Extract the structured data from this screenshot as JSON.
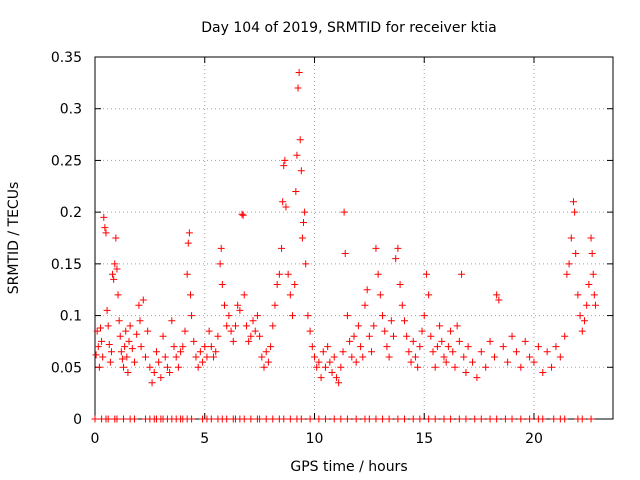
{
  "chart_data": {
    "type": "scatter",
    "title": "Day 104 of 2019, SRMTID for receiver ktia",
    "xlabel": "GPS time / hours",
    "ylabel": "SRMTID / TECUs",
    "xlim": [
      0,
      23.6
    ],
    "ylim": [
      0,
      0.35
    ],
    "xticks": [
      0,
      5,
      10,
      15,
      20
    ],
    "xtick_labels": [
      "0",
      "5",
      "10",
      "15",
      "20"
    ],
    "yticks": [
      0,
      0.05,
      0.1,
      0.15,
      0.2,
      0.25,
      0.3,
      0.35
    ],
    "ytick_labels": [
      "0",
      "0.05",
      "0.1",
      "0.15",
      "0.2",
      "0.25",
      "0.3",
      "0.35"
    ],
    "grid": true,
    "marker": "plus",
    "color": "#ff0000",
    "series": [
      {
        "name": "SRMTID",
        "points": [
          [
            0.05,
            0.062
          ],
          [
            0.1,
            0.085
          ],
          [
            0.15,
            0.07
          ],
          [
            0.2,
            0.05
          ],
          [
            0.25,
            0.088
          ],
          [
            0.3,
            0.075
          ],
          [
            0.35,
            0.06
          ],
          [
            0.4,
            0.195
          ],
          [
            0.45,
            0.185
          ],
          [
            0.5,
            0.18
          ],
          [
            0.55,
            0.105
          ],
          [
            0.6,
            0.09
          ],
          [
            0.65,
            0.072
          ],
          [
            0.7,
            0.055
          ],
          [
            0.75,
            0.065
          ],
          [
            0.8,
            0.14
          ],
          [
            0.85,
            0.135
          ],
          [
            0.9,
            0.15
          ],
          [
            0.95,
            0.175
          ],
          [
            1.0,
            0.145
          ],
          [
            1.05,
            0.12
          ],
          [
            1.1,
            0.095
          ],
          [
            1.15,
            0.08
          ],
          [
            1.2,
            0.065
          ],
          [
            1.25,
            0.058
          ],
          [
            1.3,
            0.05
          ],
          [
            1.35,
            0.07
          ],
          [
            1.4,
            0.085
          ],
          [
            1.45,
            0.06
          ],
          [
            1.5,
            0.045
          ],
          [
            1.55,
            0.075
          ],
          [
            1.6,
            0.09
          ],
          [
            1.7,
            0.068
          ],
          [
            1.8,
            0.055
          ],
          [
            1.9,
            0.082
          ],
          [
            2.0,
            0.11
          ],
          [
            2.05,
            0.095
          ],
          [
            2.1,
            0.07
          ],
          [
            2.2,
            0.115
          ],
          [
            2.3,
            0.06
          ],
          [
            2.4,
            0.085
          ],
          [
            2.5,
            0.05
          ],
          [
            2.6,
            0.035
          ],
          [
            2.7,
            0.045
          ],
          [
            2.8,
            0.065
          ],
          [
            2.9,
            0.055
          ],
          [
            3.0,
            0.04
          ],
          [
            3.1,
            0.08
          ],
          [
            3.2,
            0.06
          ],
          [
            3.3,
            0.05
          ],
          [
            3.4,
            0.045
          ],
          [
            3.5,
            0.095
          ],
          [
            3.6,
            0.07
          ],
          [
            3.7,
            0.06
          ],
          [
            3.8,
            0.05
          ],
          [
            3.9,
            0.065
          ],
          [
            4.0,
            0.07
          ],
          [
            4.1,
            0.085
          ],
          [
            4.2,
            0.14
          ],
          [
            4.25,
            0.17
          ],
          [
            4.3,
            0.18
          ],
          [
            4.35,
            0.12
          ],
          [
            4.4,
            0.1
          ],
          [
            4.5,
            0.075
          ],
          [
            4.6,
            0.06
          ],
          [
            4.7,
            0.05
          ],
          [
            4.8,
            0.065
          ],
          [
            4.9,
            0.055
          ],
          [
            5.0,
            0.07
          ],
          [
            5.1,
            0.06
          ],
          [
            5.2,
            0.085
          ],
          [
            5.3,
            0.07
          ],
          [
            5.4,
            0.06
          ],
          [
            5.5,
            0.065
          ],
          [
            5.6,
            0.08
          ],
          [
            5.7,
            0.15
          ],
          [
            5.75,
            0.165
          ],
          [
            5.8,
            0.13
          ],
          [
            5.9,
            0.11
          ],
          [
            6.0,
            0.09
          ],
          [
            6.1,
            0.1
          ],
          [
            6.2,
            0.085
          ],
          [
            6.3,
            0.075
          ],
          [
            6.4,
            0.09
          ],
          [
            6.5,
            0.11
          ],
          [
            6.6,
            0.105
          ],
          [
            6.7,
            0.198
          ],
          [
            6.75,
            0.197
          ],
          [
            6.8,
            0.12
          ],
          [
            6.9,
            0.09
          ],
          [
            7.0,
            0.075
          ],
          [
            7.1,
            0.08
          ],
          [
            7.2,
            0.095
          ],
          [
            7.3,
            0.085
          ],
          [
            7.4,
            0.1
          ],
          [
            7.5,
            0.08
          ],
          [
            7.6,
            0.06
          ],
          [
            7.7,
            0.05
          ],
          [
            7.8,
            0.065
          ],
          [
            7.9,
            0.055
          ],
          [
            8.0,
            0.07
          ],
          [
            8.1,
            0.09
          ],
          [
            8.2,
            0.11
          ],
          [
            8.3,
            0.13
          ],
          [
            8.4,
            0.14
          ],
          [
            8.5,
            0.165
          ],
          [
            8.55,
            0.21
          ],
          [
            8.6,
            0.245
          ],
          [
            8.65,
            0.25
          ],
          [
            8.7,
            0.205
          ],
          [
            8.8,
            0.14
          ],
          [
            8.9,
            0.12
          ],
          [
            9.0,
            0.1
          ],
          [
            9.1,
            0.13
          ],
          [
            9.15,
            0.22
          ],
          [
            9.2,
            0.255
          ],
          [
            9.25,
            0.32
          ],
          [
            9.3,
            0.335
          ],
          [
            9.35,
            0.27
          ],
          [
            9.4,
            0.24
          ],
          [
            9.45,
            0.175
          ],
          [
            9.5,
            0.19
          ],
          [
            9.55,
            0.2
          ],
          [
            9.6,
            0.15
          ],
          [
            9.7,
            0.1
          ],
          [
            9.8,
            0.085
          ],
          [
            9.9,
            0.07
          ],
          [
            10.0,
            0.06
          ],
          [
            10.1,
            0.05
          ],
          [
            10.2,
            0.055
          ],
          [
            10.3,
            0.04
          ],
          [
            10.4,
            0.065
          ],
          [
            10.5,
            0.05
          ],
          [
            10.6,
            0.07
          ],
          [
            10.7,
            0.055
          ],
          [
            10.8,
            0.045
          ],
          [
            10.9,
            0.06
          ],
          [
            11.0,
            0.04
          ],
          [
            11.1,
            0.035
          ],
          [
            11.2,
            0.05
          ],
          [
            11.3,
            0.065
          ],
          [
            11.35,
            0.2
          ],
          [
            11.4,
            0.16
          ],
          [
            11.5,
            0.1
          ],
          [
            11.6,
            0.075
          ],
          [
            11.7,
            0.06
          ],
          [
            11.8,
            0.08
          ],
          [
            11.9,
            0.055
          ],
          [
            12.0,
            0.09
          ],
          [
            12.1,
            0.07
          ],
          [
            12.2,
            0.06
          ],
          [
            12.3,
            0.11
          ],
          [
            12.4,
            0.125
          ],
          [
            12.5,
            0.08
          ],
          [
            12.6,
            0.065
          ],
          [
            12.7,
            0.09
          ],
          [
            12.8,
            0.165
          ],
          [
            12.9,
            0.14
          ],
          [
            13.0,
            0.12
          ],
          [
            13.1,
            0.1
          ],
          [
            13.2,
            0.085
          ],
          [
            13.3,
            0.07
          ],
          [
            13.4,
            0.06
          ],
          [
            13.5,
            0.095
          ],
          [
            13.6,
            0.08
          ],
          [
            13.7,
            0.155
          ],
          [
            13.8,
            0.165
          ],
          [
            13.9,
            0.13
          ],
          [
            14.0,
            0.11
          ],
          [
            14.1,
            0.095
          ],
          [
            14.2,
            0.08
          ],
          [
            14.3,
            0.065
          ],
          [
            14.4,
            0.055
          ],
          [
            14.5,
            0.075
          ],
          [
            14.6,
            0.06
          ],
          [
            14.7,
            0.05
          ],
          [
            14.8,
            0.07
          ],
          [
            14.9,
            0.085
          ],
          [
            15.0,
            0.1
          ],
          [
            15.1,
            0.14
          ],
          [
            15.2,
            0.12
          ],
          [
            15.3,
            0.08
          ],
          [
            15.4,
            0.065
          ],
          [
            15.5,
            0.05
          ],
          [
            15.6,
            0.07
          ],
          [
            15.7,
            0.09
          ],
          [
            15.8,
            0.075
          ],
          [
            15.9,
            0.06
          ],
          [
            16.0,
            0.055
          ],
          [
            16.1,
            0.07
          ],
          [
            16.2,
            0.085
          ],
          [
            16.3,
            0.065
          ],
          [
            16.4,
            0.05
          ],
          [
            16.5,
            0.09
          ],
          [
            16.6,
            0.075
          ],
          [
            16.7,
            0.14
          ],
          [
            16.8,
            0.06
          ],
          [
            16.9,
            0.045
          ],
          [
            17.0,
            0.07
          ],
          [
            17.2,
            0.055
          ],
          [
            17.4,
            0.04
          ],
          [
            17.6,
            0.065
          ],
          [
            17.8,
            0.05
          ],
          [
            18.0,
            0.075
          ],
          [
            18.2,
            0.06
          ],
          [
            18.3,
            0.12
          ],
          [
            18.4,
            0.115
          ],
          [
            18.6,
            0.07
          ],
          [
            18.8,
            0.055
          ],
          [
            19.0,
            0.08
          ],
          [
            19.2,
            0.065
          ],
          [
            19.4,
            0.05
          ],
          [
            19.6,
            0.075
          ],
          [
            19.8,
            0.06
          ],
          [
            20.0,
            0.055
          ],
          [
            20.2,
            0.07
          ],
          [
            20.4,
            0.045
          ],
          [
            20.6,
            0.065
          ],
          [
            20.8,
            0.05
          ],
          [
            21.0,
            0.07
          ],
          [
            21.2,
            0.06
          ],
          [
            21.4,
            0.08
          ],
          [
            21.5,
            0.14
          ],
          [
            21.6,
            0.15
          ],
          [
            21.7,
            0.175
          ],
          [
            21.8,
            0.21
          ],
          [
            21.85,
            0.2
          ],
          [
            21.9,
            0.16
          ],
          [
            22.0,
            0.12
          ],
          [
            22.1,
            0.1
          ],
          [
            22.2,
            0.085
          ],
          [
            22.3,
            0.095
          ],
          [
            22.4,
            0.11
          ],
          [
            22.5,
            0.13
          ],
          [
            22.6,
            0.175
          ],
          [
            22.65,
            0.16
          ],
          [
            22.7,
            0.14
          ],
          [
            22.75,
            0.12
          ],
          [
            22.8,
            0.11
          ]
        ],
        "zero_ticks_x": [
          0.0,
          0.3,
          0.5,
          0.6,
          0.9,
          1.0,
          1.3,
          1.6,
          1.8,
          2.3,
          2.5,
          2.7,
          2.8,
          3.0,
          3.1,
          3.3,
          3.5,
          3.7,
          3.9,
          4.0,
          4.2,
          4.4,
          4.9,
          5.1,
          5.3,
          5.6,
          5.8,
          6.0,
          6.3,
          6.4,
          6.6,
          6.8,
          7.1,
          7.4,
          7.5,
          7.8,
          8.1,
          8.4,
          8.6,
          8.9,
          9.2,
          9.4,
          9.8,
          10.2,
          10.5,
          10.9,
          11.2,
          11.5,
          11.9,
          12.3,
          12.5,
          12.8,
          13.1,
          13.4,
          13.8,
          14.1,
          14.5,
          14.8,
          15.2,
          15.5,
          15.9,
          16.2,
          16.6,
          16.9,
          17.3,
          17.6,
          18.0,
          18.3,
          18.7,
          19.0,
          19.4,
          19.8,
          20.2,
          20.4,
          20.9,
          21.2,
          21.4,
          22.0,
          22.2,
          22.6
        ]
      }
    ]
  }
}
